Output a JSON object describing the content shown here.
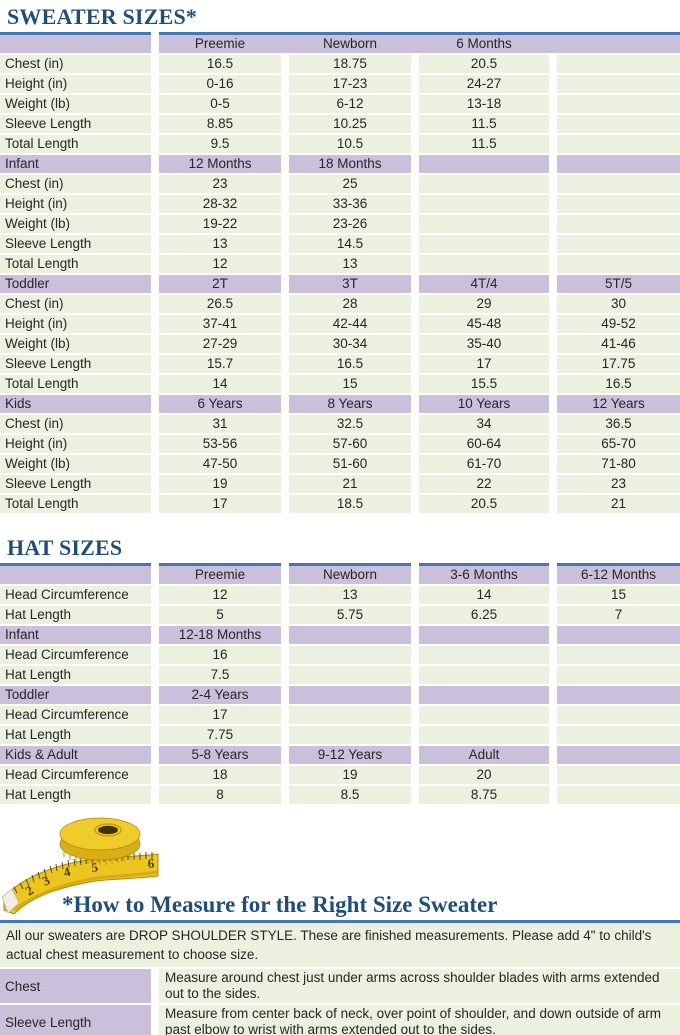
{
  "page": {
    "colors": {
      "navy": "#1F4E79",
      "rule": "#4577B4",
      "purple": "#CBC0DB",
      "green": "#EBF1DE",
      "text": "#262626",
      "tape_yellow": "#EDC51F"
    },
    "tape_icon": "measuring-tape"
  },
  "sweater": {
    "title": "SWEATER SIZES*",
    "sections": [
      {
        "header": [
          "",
          "Preemie",
          "Newborn",
          "6 Months",
          ""
        ],
        "merged": true,
        "rows": [
          [
            "Chest (in)",
            "16.5",
            "18.75",
            "20.5",
            ""
          ],
          [
            "Height (in)",
            "0-16",
            "17-23",
            "24-27",
            ""
          ],
          [
            "Weight (lb)",
            "0-5",
            "6-12",
            "13-18",
            ""
          ],
          [
            "Sleeve Length",
            "8.85",
            "10.25",
            "11.5",
            ""
          ],
          [
            "Total Length",
            "9.5",
            "10.5",
            "11.5",
            ""
          ]
        ]
      },
      {
        "header": [
          "Infant",
          "12 Months",
          "18 Months",
          "",
          ""
        ],
        "rows": [
          [
            "Chest (in)",
            "23",
            "25",
            "",
            ""
          ],
          [
            "Height (in)",
            "28-32",
            "33-36",
            "",
            ""
          ],
          [
            "Weight (lb)",
            "19-22",
            "23-26",
            "",
            ""
          ],
          [
            "Sleeve Length",
            "13",
            "14.5",
            "",
            ""
          ],
          [
            "Total Length",
            "12",
            "13",
            "",
            ""
          ]
        ]
      },
      {
        "header": [
          "Toddler",
          "2T",
          "3T",
          "4T/4",
          "5T/5"
        ],
        "rows": [
          [
            "Chest (in)",
            "26.5",
            "28",
            "29",
            "30"
          ],
          [
            "Height (in)",
            "37-41",
            "42-44",
            "45-48",
            "49-52"
          ],
          [
            "Weight (lb)",
            "27-29",
            "30-34",
            "35-40",
            "41-46"
          ],
          [
            "Sleeve Length",
            "15.7",
            "16.5",
            "17",
            "17.75"
          ],
          [
            "Total Length",
            "14",
            "15",
            "15.5",
            "16.5"
          ]
        ]
      },
      {
        "header": [
          "Kids",
          "6 Years",
          "8 Years",
          "10 Years",
          "12 Years"
        ],
        "rows": [
          [
            "Chest (in)",
            "31",
            "32.5",
            "34",
            "36.5"
          ],
          [
            "Height (in)",
            "53-56",
            "57-60",
            "60-64",
            "65-70"
          ],
          [
            "Weight (lb)",
            "47-50",
            "51-60",
            "61-70",
            "71-80"
          ],
          [
            "Sleeve Length",
            "19",
            "21",
            "22",
            "23"
          ],
          [
            "Total Length",
            "17",
            "18.5",
            "20.5",
            "21"
          ]
        ]
      }
    ]
  },
  "hat": {
    "title": "HAT SIZES",
    "sections": [
      {
        "header": [
          "",
          "Preemie",
          "Newborn",
          "3-6 Months",
          "6-12 Months"
        ],
        "rows": [
          [
            "Head Circumference",
            "12",
            "13",
            "14",
            "15"
          ],
          [
            "Hat Length",
            "5",
            "5.75",
            "6.25",
            "7"
          ]
        ]
      },
      {
        "header": [
          "Infant",
          "12-18 Months",
          "",
          "",
          ""
        ],
        "rows": [
          [
            "Head Circumference",
            "16",
            "",
            "",
            ""
          ],
          [
            "Hat Length",
            "7.5",
            "",
            "",
            ""
          ]
        ]
      },
      {
        "header": [
          "Toddler",
          "2-4 Years",
          "",
          "",
          ""
        ],
        "rows": [
          [
            "Head Circumference",
            "17",
            "",
            "",
            ""
          ],
          [
            "Hat Length",
            "7.75",
            "",
            "",
            ""
          ]
        ]
      },
      {
        "header": [
          "Kids & Adult",
          "5-8 Years",
          "9-12 Years",
          "Adult",
          ""
        ],
        "rows": [
          [
            "Head Circumference",
            "18",
            "19",
            "20",
            ""
          ],
          [
            "Hat Length",
            "8",
            "8.5",
            "8.75",
            ""
          ]
        ]
      }
    ]
  },
  "measure": {
    "title": "*How to Measure for the Right Size Sweater",
    "intro": "All our sweaters are DROP SHOULDER STYLE.  These are finished measurements.  Please add 4\" to child's actual chest measurement to choose size.",
    "rows": [
      {
        "label": "Chest",
        "text": "Measure around chest just under arms across shoulder blades with arms extended out to the sides."
      },
      {
        "label": "Sleeve Length",
        "text": "Measure from center back of neck, over point of shoulder, and down outside of arm past elbow to wrist with arms extended out to the sides."
      }
    ]
  }
}
